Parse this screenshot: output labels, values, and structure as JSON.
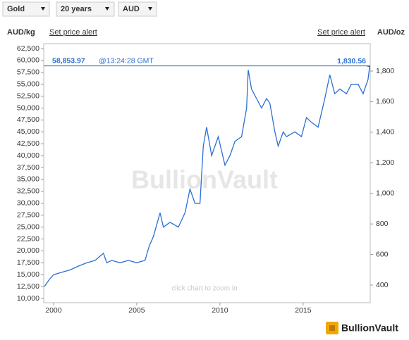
{
  "controls": [
    "Gold",
    "20 years",
    "AUD"
  ],
  "logo": "BullionVault",
  "chart_data": {
    "type": "line",
    "y_label": "AUD/kg",
    "y2_label": "AUD/oz",
    "alert_left": "Set price alert",
    "alert_right": "Set price alert",
    "watermark": "BullionVault",
    "hint": "click chart to zoom in",
    "current_price": {
      "value": 58853.97,
      "label": "58,853.97"
    },
    "current_time": "@13:24:28 GMT",
    "current_price_y2": {
      "value": 1830.56,
      "label": "1,830.56"
    },
    "grid": false,
    "xlim": [
      1999.41,
      2019.03
    ],
    "xticks": [
      2000,
      2005,
      2010,
      2015
    ],
    "ylim": [
      9113,
      63535
    ],
    "yticks": [
      {
        "value": 10000,
        "label": "10,000"
      },
      {
        "value": 12500,
        "label": "12,500"
      },
      {
        "value": 15000,
        "label": "15,000"
      },
      {
        "value": 17500,
        "label": "17,500"
      },
      {
        "value": 20000,
        "label": "20,000"
      },
      {
        "value": 22500,
        "label": "22,500"
      },
      {
        "value": 25000,
        "label": "25,000"
      },
      {
        "value": 27500,
        "label": "27,500"
      },
      {
        "value": 30000,
        "label": "30,000"
      },
      {
        "value": 32500,
        "label": "32,500"
      },
      {
        "value": 35000,
        "label": "35,000"
      },
      {
        "value": 37500,
        "label": "37,500"
      },
      {
        "value": 40000,
        "label": "40,000"
      },
      {
        "value": 42500,
        "label": "42,500"
      },
      {
        "value": 45000,
        "label": "45,000"
      },
      {
        "value": 47500,
        "label": "47,500"
      },
      {
        "value": 50000,
        "label": "50,000"
      },
      {
        "value": 52500,
        "label": "52,500"
      },
      {
        "value": 55000,
        "label": "55,000"
      },
      {
        "value": 57500,
        "label": "57,500"
      },
      {
        "value": 60000,
        "label": "60,000"
      },
      {
        "value": 62500,
        "label": "62,500"
      }
    ],
    "y2lim": [
      284.8,
      1979.6
    ],
    "y2ticks": [
      400,
      600,
      800,
      {
        "value": 1000,
        "label": "1,000"
      },
      {
        "value": 1200,
        "label": "1,200"
      },
      {
        "value": 1400,
        "label": "1,400"
      },
      {
        "value": 1600,
        "label": "1,600"
      },
      {
        "value": 1800,
        "label": "1,800"
      }
    ],
    "x": [
      1999.45,
      1999.75,
      2000,
      2000.5,
      2001,
      2001.5,
      2002,
      2002.5,
      2003,
      2003.2,
      2003.5,
      2004,
      2004.5,
      2005,
      2005.5,
      2005.75,
      2006,
      2006.4,
      2006.6,
      2007,
      2007.5,
      2007.9,
      2008.2,
      2008.5,
      2008.8,
      2009,
      2009.2,
      2009.5,
      2009.9,
      2010.3,
      2010.6,
      2010.9,
      2011.3,
      2011.6,
      2011.7,
      2011.9,
      2012.2,
      2012.5,
      2012.8,
      2013,
      2013.3,
      2013.5,
      2013.8,
      2014,
      2014.5,
      2014.9,
      2015.2,
      2015.5,
      2015.9,
      2016.3,
      2016.6,
      2016.9,
      2017.2,
      2017.6,
      2017.9,
      2018.3,
      2018.6,
      2018.9,
      2019
    ],
    "series": [
      {
        "color": "#2b6fd4",
        "values": [
          12500,
          14000,
          15000,
          15500,
          16000,
          16800,
          17500,
          18000,
          19500,
          17500,
          18000,
          17500,
          18000,
          17500,
          18000,
          21000,
          23000,
          28000,
          25000,
          26000,
          25000,
          28000,
          33000,
          30000,
          30000,
          42000,
          46000,
          40000,
          44000,
          38000,
          40000,
          43000,
          44000,
          50000,
          58000,
          54000,
          52000,
          50000,
          52000,
          51000,
          45000,
          42000,
          45000,
          44000,
          45000,
          44000,
          48000,
          47000,
          46000,
          52000,
          57000,
          53000,
          54000,
          53000,
          55000,
          55000,
          53000,
          56000,
          58853.97
        ]
      }
    ]
  }
}
